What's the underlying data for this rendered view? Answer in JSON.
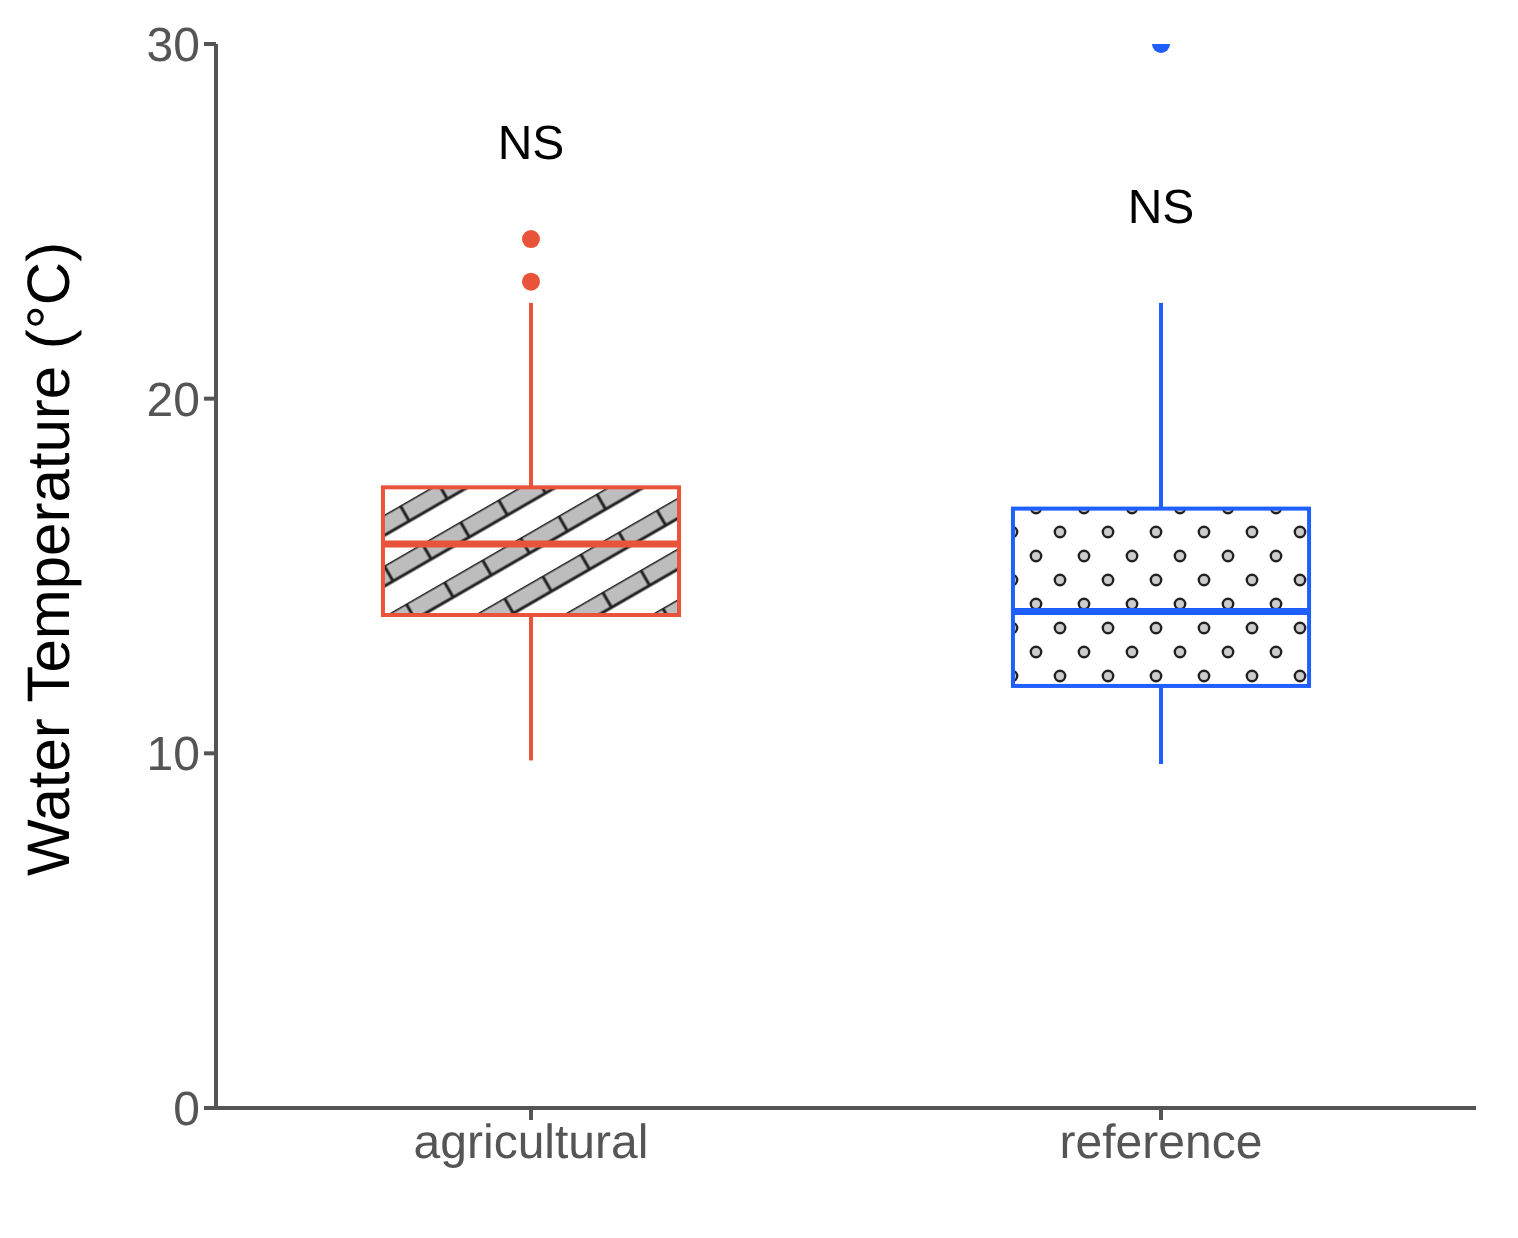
{
  "chart_data": {
    "type": "box",
    "ylabel": "Water Temperature  (°C)",
    "categories": [
      "agricultural",
      "reference"
    ],
    "boxes": [
      {
        "low": 9.8,
        "q1": 13.9,
        "median": 15.9,
        "q3": 17.5,
        "high": 22.7,
        "outliers": [
          23.3,
          24.5
        ]
      },
      {
        "low": 9.7,
        "q1": 11.9,
        "median": 14.0,
        "q3": 16.9,
        "high": 22.7,
        "outliers": [
          30
        ]
      }
    ],
    "colors": [
      "#e8533a",
      "#1f5fff"
    ],
    "ylim": [
      0,
      30
    ],
    "yticks": [
      0,
      10,
      20,
      30
    ],
    "annotations": [
      "NS",
      "NS"
    ]
  }
}
